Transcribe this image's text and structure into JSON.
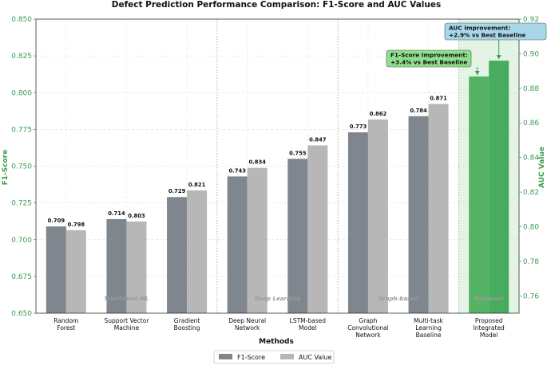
{
  "chart_data": {
    "type": "bar",
    "title": "Defect Prediction Performance Comparison: F1-Score and AUC Values",
    "xlabel": "Methods",
    "ylabel_left": "F1-Score",
    "ylabel_right": "AUC Value",
    "ylim_left": [
      0.65,
      0.85
    ],
    "ylim_right": [
      0.75,
      0.92
    ],
    "yticks_left": [
      "0.650",
      "0.675",
      "0.700",
      "0.725",
      "0.750",
      "0.775",
      "0.800",
      "0.825",
      "0.850"
    ],
    "yticks_right": [
      "0.76",
      "0.78",
      "0.80",
      "0.82",
      "0.84",
      "0.86",
      "0.88",
      "0.90",
      "0.92"
    ],
    "categories": [
      [
        "Random",
        "Forest"
      ],
      [
        "Support Vector",
        "Machine"
      ],
      [
        "Gradient",
        "Boosting"
      ],
      [
        "Deep Neural",
        "Network"
      ],
      [
        "LSTM-based",
        "Model"
      ],
      [
        "Graph",
        "Convolutional",
        "Network"
      ],
      [
        "Multi-task",
        "Learning",
        "Baseline"
      ],
      [
        "Proposed",
        "Integrated",
        "Model"
      ]
    ],
    "series": [
      {
        "name": "F1-Score",
        "axis": "left",
        "values": [
          0.709,
          0.714,
          0.729,
          0.743,
          0.755,
          0.773,
          0.784,
          0.811
        ]
      },
      {
        "name": "AUC Value",
        "axis": "right",
        "values": [
          0.798,
          0.803,
          0.821,
          0.834,
          0.847,
          0.862,
          0.871,
          0.896
        ]
      }
    ],
    "bar_labels": {
      "f1": [
        "0.709",
        "0.714",
        "0.729",
        "0.743",
        "0.755",
        "0.773",
        "0.784",
        ""
      ],
      "auc": [
        "0.798",
        "0.803",
        "0.821",
        "0.834",
        "0.847",
        "0.862",
        "0.871",
        ""
      ]
    },
    "groups": [
      {
        "label": "Traditional ML",
        "start": 0,
        "end": 2
      },
      {
        "label": "Deep Learning",
        "start": 3,
        "end": 4
      },
      {
        "label": "Graph-based",
        "start": 5,
        "end": 6
      },
      {
        "label": "Proposed",
        "start": 7,
        "end": 7
      }
    ],
    "annotations": [
      {
        "lines": [
          "AUC Improvement:",
          "+2.9% vs Best Baseline"
        ],
        "target": "auc",
        "index": 7
      },
      {
        "lines": [
          "F1-Score Improvement:",
          "+3.4% vs Best Baseline"
        ],
        "target": "f1",
        "index": 7
      }
    ],
    "legend_position": "bottom-center",
    "grid": true,
    "colors": {
      "f1": "#7f868e",
      "auc": "#b7b7b7",
      "proposed_f1": "#4caf5e",
      "proposed_auc": "#3fa856",
      "axis_green": "#3a9d4f",
      "auc_box": "#a8d7ea",
      "f1_box": "#8fe08d",
      "proposed_shade": "#e3f3e4"
    }
  }
}
